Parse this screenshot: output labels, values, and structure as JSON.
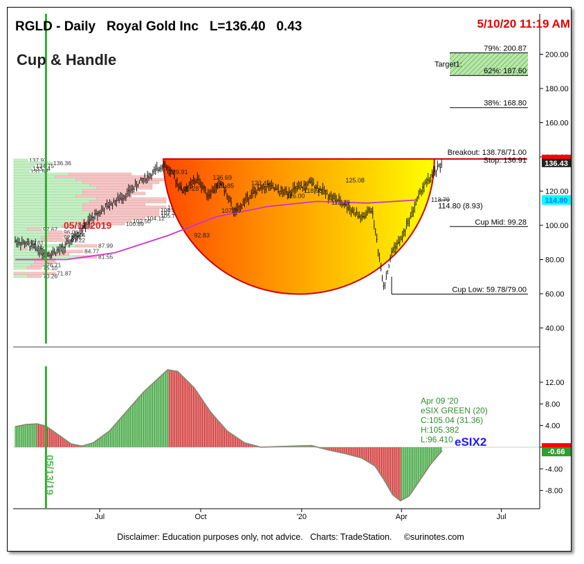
{
  "header": {
    "symbol_line": "RGLD - Daily   Royal Gold Inc   L=136.40   0.43",
    "timestamp": "5/10/20 11:19 AM",
    "pattern_title": "Cup & Handle",
    "disclaimer": "Disclaimer: Education purposes only, not advice.   Charts: TradeStation.     ©surinotes.com"
  },
  "colors": {
    "price_bars": "#000000",
    "moving_average": "#cc33cc",
    "cup_rim": "#cc0000",
    "cup_fill_left": "#ff4a00",
    "cup_fill_right": "#ffff00",
    "vertical_marker": "#33aa33",
    "volume_profile_up": "#c6efc6",
    "volume_profile_down": "#f5c6c6",
    "osc_positive": "#2e9e2e",
    "osc_negative": "#cc2020",
    "last_price_tag": "#ff0000",
    "ma_tag": "#00ffff"
  },
  "chart_data": [
    {
      "type": "line",
      "title": "RGLD - Daily Royal Gold Inc",
      "x_axis_ticks": [
        "Jul",
        "Oct",
        "'20",
        "Apr",
        "Jul"
      ],
      "y_axis_ticks": [
        40,
        60,
        80,
        100,
        120,
        140,
        160,
        180,
        200
      ],
      "ylim": [
        25,
        212
      ],
      "last_price_tag": "136.43",
      "ma_tag": "114.80",
      "grid": false,
      "price_path": [
        {
          "d": "2019-04-15",
          "v": 91
        },
        {
          "d": "2019-05-01",
          "v": 88
        },
        {
          "d": "2019-05-13",
          "v": 83
        },
        {
          "d": "2019-05-28",
          "v": 86
        },
        {
          "d": "2019-06-10",
          "v": 94
        },
        {
          "d": "2019-06-25",
          "v": 105
        },
        {
          "d": "2019-07-10",
          "v": 112
        },
        {
          "d": "2019-07-25",
          "v": 118
        },
        {
          "d": "2019-08-08",
          "v": 126
        },
        {
          "d": "2019-08-20",
          "v": 131
        },
        {
          "d": "2019-08-28",
          "v": 136
        },
        {
          "d": "2019-09-05",
          "v": 130
        },
        {
          "d": "2019-09-15",
          "v": 120
        },
        {
          "d": "2019-09-28",
          "v": 127
        },
        {
          "d": "2019-10-08",
          "v": 118
        },
        {
          "d": "2019-10-20",
          "v": 125
        },
        {
          "d": "2019-11-01",
          "v": 107
        },
        {
          "d": "2019-11-15",
          "v": 118
        },
        {
          "d": "2019-12-01",
          "v": 123
        },
        {
          "d": "2019-12-15",
          "v": 119
        },
        {
          "d": "2020-01-01",
          "v": 122
        },
        {
          "d": "2020-01-10",
          "v": 125
        },
        {
          "d": "2020-01-25",
          "v": 118
        },
        {
          "d": "2020-02-10",
          "v": 112
        },
        {
          "d": "2020-02-25",
          "v": 104
        },
        {
          "d": "2020-03-05",
          "v": 110
        },
        {
          "d": "2020-03-16",
          "v": 64
        },
        {
          "d": "2020-03-24",
          "v": 86
        },
        {
          "d": "2020-04-01",
          "v": 92
        },
        {
          "d": "2020-04-09",
          "v": 105
        },
        {
          "d": "2020-04-20",
          "v": 122
        },
        {
          "d": "2020-04-28",
          "v": 128
        },
        {
          "d": "2020-05-08",
          "v": 136.4
        }
      ],
      "moving_average": [
        {
          "d": "2019-04-15",
          "v": 80
        },
        {
          "d": "2019-06-01",
          "v": 80
        },
        {
          "d": "2019-07-15",
          "v": 84
        },
        {
          "d": "2019-09-01",
          "v": 94
        },
        {
          "d": "2019-10-15",
          "v": 105
        },
        {
          "d": "2019-12-01",
          "v": 111
        },
        {
          "d": "2020-01-15",
          "v": 114
        },
        {
          "d": "2020-03-01",
          "v": 113
        },
        {
          "d": "2020-04-15",
          "v": 114.8
        }
      ],
      "cup": {
        "rim_start_date": "2019-08-28",
        "rim_end_date": "2020-05-01",
        "rim_level": 138.78,
        "low_level": 59.78
      },
      "vertical_marker_date": "2019-05-13",
      "annotations": [
        {
          "label": "Cup & Handle"
        },
        {
          "label": "05/11/2019"
        },
        {
          "label": "Breakout: 138.78/71.00",
          "level": 138.78
        },
        {
          "label": "Stop: 136.91",
          "level": 136.91
        },
        {
          "label": "79%: 200.87",
          "level": 200.87
        },
        {
          "label": "Target1:",
          "level": 194
        },
        {
          "label": "62%: 187.60",
          "level": 187.6
        },
        {
          "label": "38%: 168.80",
          "level": 168.8
        },
        {
          "label": "114.80 (8.93)",
          "level": 114.8
        },
        {
          "label": "Cup Mid: 99.28",
          "level": 99.28
        },
        {
          "label": "Cup Low: 59.78/79.00",
          "level": 59.78
        }
      ],
      "price_labels": [
        {
          "text": "129.91",
          "date": "2019-09-02",
          "v": 129.91
        },
        {
          "text": "120.28",
          "date": "2019-09-12",
          "v": 120.28
        },
        {
          "text": "126.69",
          "date": "2019-10-12",
          "v": 126.69
        },
        {
          "text": "121.85",
          "date": "2019-10-14",
          "v": 121.85
        },
        {
          "text": "123.46",
          "date": "2019-11-16",
          "v": 123.46
        },
        {
          "text": "107.34",
          "date": "2019-10-20",
          "v": 107.34
        },
        {
          "text": "116.00",
          "date": "2019-12-18",
          "v": 116.0
        },
        {
          "text": "118.98",
          "date": "2020-01-03",
          "v": 118.98
        },
        {
          "text": "125.08",
          "date": "2020-02-10",
          "v": 125.08
        },
        {
          "text": "112.18",
          "date": "2020-01-28",
          "v": 112.18
        },
        {
          "text": "92.83",
          "date": "2019-09-25",
          "v": 92.83
        },
        {
          "text": "113.79",
          "date": "2020-04-28",
          "v": 113.79
        }
      ],
      "volume_profile": [
        {
          "price": 137.97,
          "label": "137.97",
          "up": 20,
          "down": 0
        },
        {
          "price": 136.36,
          "label": "136.36",
          "up": 55,
          "down": 0
        },
        {
          "price": 134.75,
          "label": "134.75",
          "up": 30,
          "down": 0
        },
        {
          "price": 133.14,
          "label": "133.14",
          "up": 25,
          "down": 0
        },
        {
          "price": 131.52,
          "label": "131.52",
          "up": 22,
          "down": 0
        },
        {
          "price": 129.91,
          "label": "",
          "up": 80,
          "down": 90
        },
        {
          "price": 128.3,
          "label": "",
          "up": 60,
          "down": 140
        },
        {
          "price": 126.69,
          "label": "",
          "up": 90,
          "down": 130
        },
        {
          "price": 125.08,
          "label": "",
          "up": 100,
          "down": 110
        },
        {
          "price": 123.46,
          "label": "",
          "up": 110,
          "down": 90
        },
        {
          "price": 121.85,
          "label": "",
          "up": 120,
          "down": 80
        },
        {
          "price": 120.24,
          "label": "",
          "up": 100,
          "down": 70
        },
        {
          "price": 118.63,
          "label": "",
          "up": 100,
          "down": 90
        },
        {
          "price": 117.01,
          "label": "",
          "up": 90,
          "down": 80
        },
        {
          "price": 115.4,
          "label": "",
          "up": 120,
          "down": 100
        },
        {
          "price": 113.79,
          "label": "",
          "up": 110,
          "down": 110
        },
        {
          "price": 112.18,
          "label": "",
          "up": 100,
          "down": 90
        },
        {
          "price": 110.57,
          "label": "110.57",
          "up": 100,
          "down": 120
        },
        {
          "price": 108.95,
          "label": "108.95",
          "up": 100,
          "down": 110
        },
        {
          "price": 107.34,
          "label": "107.34",
          "up": 110,
          "down": 100
        },
        {
          "price": 105.73,
          "label": "105.73",
          "up": 120,
          "down": 90
        },
        {
          "price": 104.12,
          "label": "104.12",
          "up": 110,
          "down": 80
        },
        {
          "price": 102.5,
          "label": "102.50",
          "up": 100,
          "down": 70
        },
        {
          "price": 100.89,
          "label": "100.89",
          "up": 90,
          "down": 70
        },
        {
          "price": 99.28,
          "label": "99.28",
          "up": 70,
          "down": 20
        },
        {
          "price": 97.67,
          "label": "97.67",
          "up": 20,
          "down": 20
        },
        {
          "price": 96.06,
          "label": "96.06",
          "up": 50,
          "down": 20
        },
        {
          "price": 94.44,
          "label": "94.44",
          "up": 50,
          "down": 30
        },
        {
          "price": 92.83,
          "label": "92.83",
          "up": 40,
          "down": 30
        },
        {
          "price": 91.22,
          "label": "91.22",
          "up": 40,
          "down": 40
        },
        {
          "price": 89.61,
          "label": "89.61",
          "up": 10,
          "down": 10
        },
        {
          "price": 88.0,
          "label": "87.99",
          "up": 90,
          "down": 30
        },
        {
          "price": 86.38,
          "label": "86.38",
          "up": 10,
          "down": 10
        },
        {
          "price": 84.77,
          "label": "84.77",
          "up": 70,
          "down": 30
        },
        {
          "price": 83.16,
          "label": "",
          "up": 40,
          "down": 40
        },
        {
          "price": 81.55,
          "label": "81.55",
          "up": 90,
          "down": 30
        },
        {
          "price": 79.94,
          "label": "",
          "up": 30,
          "down": 30
        },
        {
          "price": 78.33,
          "label": "",
          "up": 30,
          "down": 30
        },
        {
          "price": 76.71,
          "label": "76.71",
          "up": 25,
          "down": 20
        },
        {
          "price": 75.1,
          "label": "75.10",
          "up": 20,
          "down": 20
        },
        {
          "price": 71.87,
          "label": "71.87",
          "up": 0,
          "down": 60
        },
        {
          "price": 70.26,
          "label": "70.26",
          "up": 20,
          "down": 20
        }
      ]
    },
    {
      "type": "area",
      "title": "eSIX2",
      "y_axis_ticks": [
        -8.0,
        -4.0,
        0.0,
        4.0,
        8.0,
        12.0
      ],
      "ylim": [
        -10.2,
        16
      ],
      "last_value_tag": "-0.66",
      "grid": false,
      "vertical_marker_label": "05/13/19",
      "info_box": [
        "Apr 09 '20",
        "eSIX GREEN (20)",
        "C:105.04 (31.36)",
        "H:105.382",
        "L:96.410"
      ],
      "values": [
        {
          "d": "2019-04-15",
          "v": 3.8
        },
        {
          "d": "2019-04-25",
          "v": 4.2
        },
        {
          "d": "2019-05-05",
          "v": 4.3
        },
        {
          "d": "2019-05-13",
          "v": 3.9
        },
        {
          "d": "2019-05-25",
          "v": 2.2
        },
        {
          "d": "2019-06-05",
          "v": 0.6
        },
        {
          "d": "2019-06-15",
          "v": 0.2
        },
        {
          "d": "2019-06-25",
          "v": 0.8
        },
        {
          "d": "2019-07-10",
          "v": 3.0
        },
        {
          "d": "2019-07-25",
          "v": 6.5
        },
        {
          "d": "2019-08-10",
          "v": 10.2
        },
        {
          "d": "2019-08-25",
          "v": 13.0
        },
        {
          "d": "2019-09-01",
          "v": 14.3
        },
        {
          "d": "2019-09-10",
          "v": 14.0
        },
        {
          "d": "2019-09-25",
          "v": 11.0
        },
        {
          "d": "2019-10-10",
          "v": 6.5
        },
        {
          "d": "2019-10-25",
          "v": 3.0
        },
        {
          "d": "2019-11-10",
          "v": 0.8
        },
        {
          "d": "2019-11-25",
          "v": 0.0
        },
        {
          "d": "2019-12-10",
          "v": 0.1
        },
        {
          "d": "2019-12-25",
          "v": 0.2
        },
        {
          "d": "2020-01-10",
          "v": 0.3
        },
        {
          "d": "2020-01-25",
          "v": -0.5
        },
        {
          "d": "2020-02-10",
          "v": -1.2
        },
        {
          "d": "2020-02-25",
          "v": -2.0
        },
        {
          "d": "2020-03-08",
          "v": -3.5
        },
        {
          "d": "2020-03-16",
          "v": -6.0
        },
        {
          "d": "2020-03-24",
          "v": -8.8
        },
        {
          "d": "2020-03-31",
          "v": -9.9
        },
        {
          "d": "2020-04-08",
          "v": -9.0
        },
        {
          "d": "2020-04-18",
          "v": -6.0
        },
        {
          "d": "2020-04-28",
          "v": -3.0
        },
        {
          "d": "2020-05-08",
          "v": -0.66
        }
      ]
    }
  ]
}
